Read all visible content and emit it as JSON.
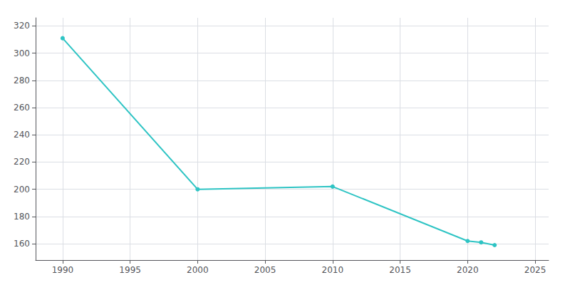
{
  "chart_data": {
    "type": "line",
    "x": [
      1990,
      2000,
      2010,
      2020,
      2021,
      2022
    ],
    "values": [
      311,
      200,
      202,
      162,
      161,
      159
    ],
    "color": "#2EC4C4",
    "marker": "circle",
    "xlim": [
      1988,
      2026
    ],
    "ylim": [
      148,
      326
    ],
    "xticks": [
      1990,
      1995,
      2000,
      2005,
      2010,
      2015,
      2020,
      2025
    ],
    "yticks": [
      160,
      180,
      200,
      220,
      240,
      260,
      280,
      300,
      320
    ],
    "grid": true
  }
}
